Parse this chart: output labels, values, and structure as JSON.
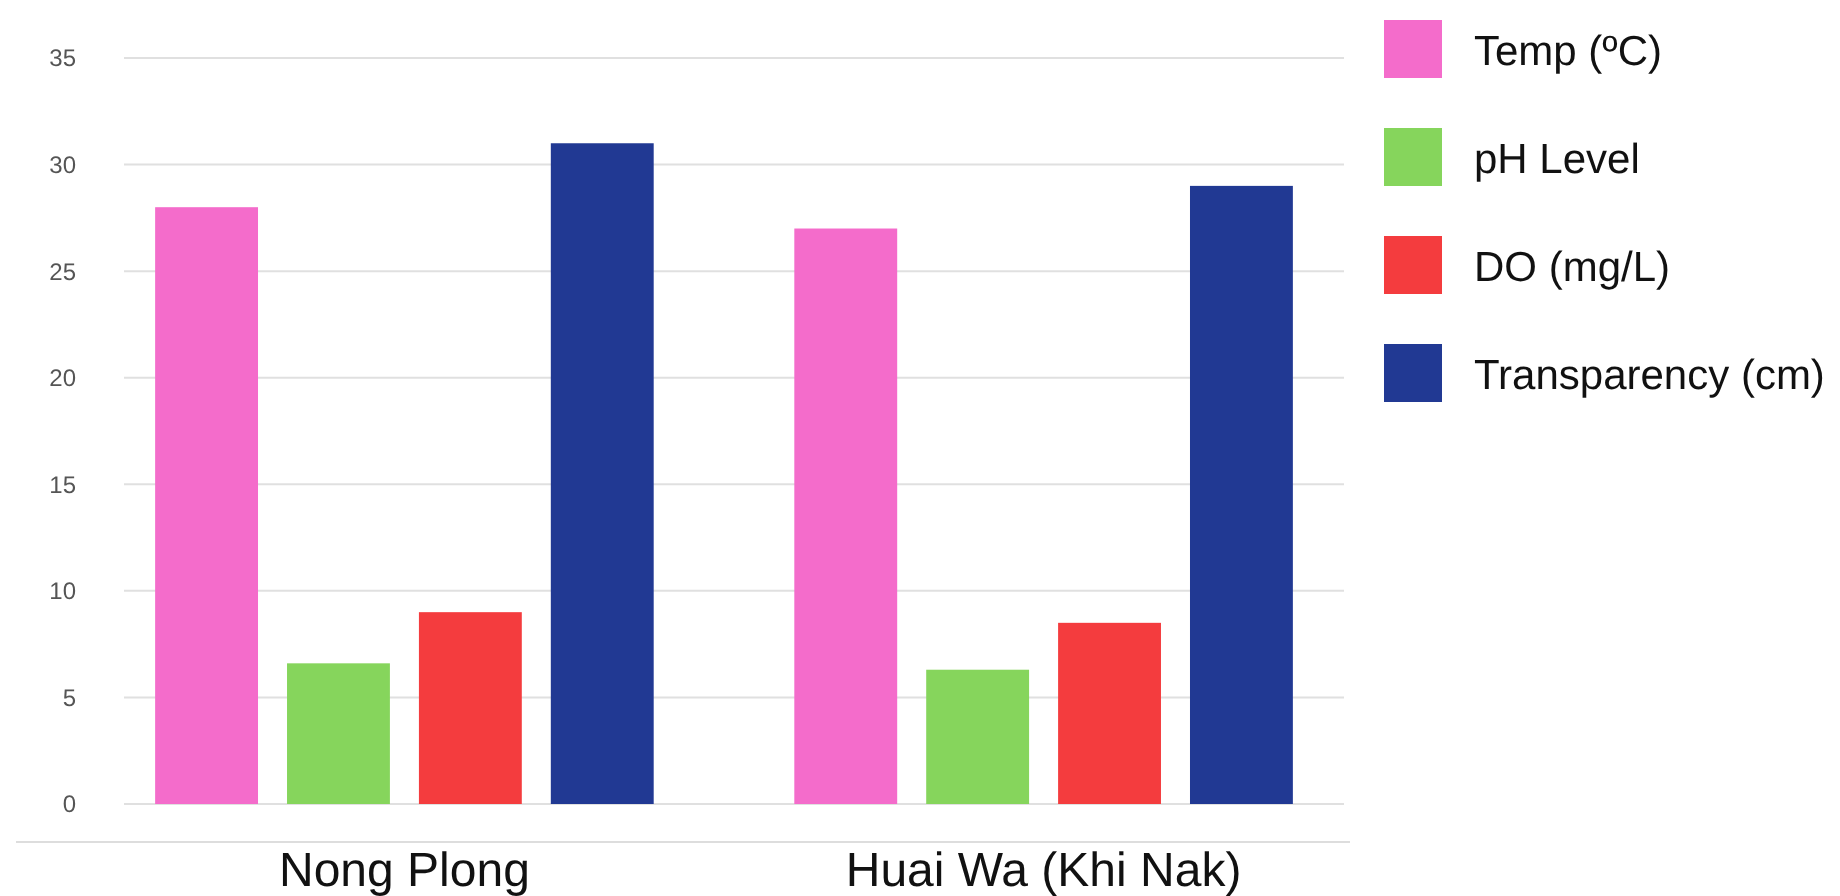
{
  "chart_data": {
    "type": "bar",
    "categories": [
      "Nong Plong",
      "Huai Wa (Khi Nak)"
    ],
    "series": [
      {
        "name": "Temp (ºC)",
        "color": "#f46ccb",
        "values": [
          28,
          27
        ]
      },
      {
        "name": "pH Level",
        "color": "#86d55c",
        "values": [
          6.6,
          6.3
        ]
      },
      {
        "name": "DO (mg/L)",
        "color": "#f43c3e",
        "values": [
          9,
          8.5
        ]
      },
      {
        "name": "Transparency (cm)",
        "color": "#213993",
        "values": [
          31,
          29
        ]
      }
    ],
    "ylim": [
      0,
      35
    ],
    "yticks": [
      0,
      5,
      10,
      15,
      20,
      25,
      30,
      35
    ],
    "grid": "y",
    "legend": "right"
  }
}
